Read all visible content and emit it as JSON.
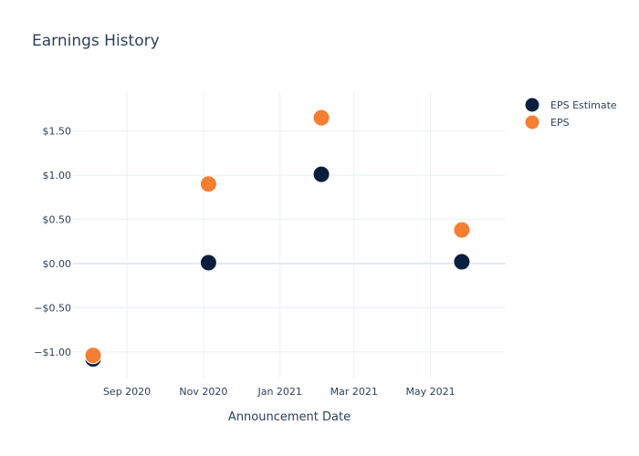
{
  "chart_data": {
    "type": "scatter",
    "title": "Earnings History",
    "xlabel": "Announcement Date",
    "ylabel": "",
    "x_ticks": [
      {
        "date": "2020-09-01",
        "label": "Sep 2020"
      },
      {
        "date": "2020-11-01",
        "label": "Nov 2020"
      },
      {
        "date": "2021-01-01",
        "label": "Jan 2021"
      },
      {
        "date": "2021-03-01",
        "label": "Mar 2021"
      },
      {
        "date": "2021-05-01",
        "label": "May 2021"
      }
    ],
    "y_ticks": [
      {
        "value": -1.0,
        "label": "−$1.00"
      },
      {
        "value": -0.5,
        "label": "−$0.50"
      },
      {
        "value": 0.0,
        "label": "$0.00"
      },
      {
        "value": 0.5,
        "label": "$0.50"
      },
      {
        "value": 1.0,
        "label": "$1.00"
      },
      {
        "value": 1.5,
        "label": "$1.50"
      }
    ],
    "xlim": [
      "2020-07-20",
      "2021-06-30"
    ],
    "ylim": [
      -1.3,
      1.95
    ],
    "grid": true,
    "legend_position": "top-right",
    "series": [
      {
        "name": "EPS Estimate",
        "color": "#0a1f3f",
        "points": [
          {
            "x": "2020-08-05",
            "y": -1.08
          },
          {
            "x": "2020-11-05",
            "y": 0.01
          },
          {
            "x": "2021-02-03",
            "y": 1.01
          },
          {
            "x": "2021-05-26",
            "y": 0.02
          }
        ]
      },
      {
        "name": "EPS",
        "color": "#f47e32",
        "points": [
          {
            "x": "2020-08-05",
            "y": -1.04
          },
          {
            "x": "2020-11-05",
            "y": 0.9
          },
          {
            "x": "2021-02-03",
            "y": 1.65
          },
          {
            "x": "2021-05-26",
            "y": 0.38
          }
        ]
      }
    ]
  }
}
